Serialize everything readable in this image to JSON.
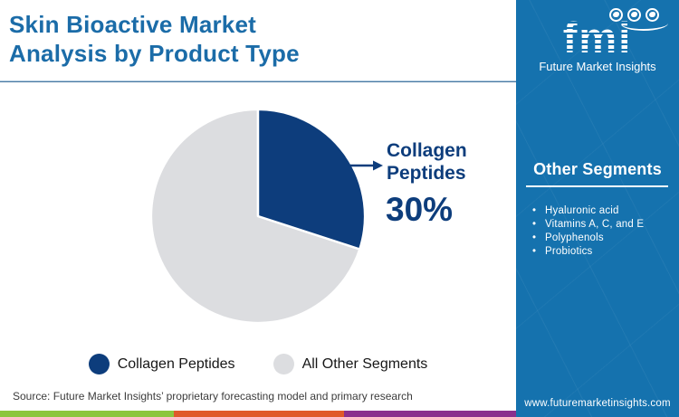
{
  "header": {
    "title": "Skin Bioactive Market Analysis by Product Type"
  },
  "logo": {
    "acronym": "fmi",
    "name": "Future Market Insights",
    "globe_icons": [
      "globe-americas-icon",
      "globe-europe-icon",
      "globe-asia-icon"
    ]
  },
  "chart_data": {
    "type": "pie",
    "title": "Skin Bioactive Market Analysis by Product Type",
    "slices": [
      {
        "label": "Collagen Peptides",
        "value": 30,
        "color": "#0d3d7c"
      },
      {
        "label": "All Other Segments",
        "value": 70,
        "color": "#dcdde0"
      }
    ],
    "start_angle_deg": 0,
    "direction": "clockwise",
    "slice_border_color": "#ffffff",
    "annotation": {
      "label": "Collagen Peptides",
      "value_label": "30%"
    },
    "legend_position": "bottom"
  },
  "callout": {
    "label": "Collagen Peptides",
    "value": "30%",
    "arrow_color": "#0d3d7c"
  },
  "legend": [
    {
      "label": "Collagen Peptides",
      "color": "#0d3d7c"
    },
    {
      "label": "All Other Segments",
      "color": "#dcdde0"
    }
  ],
  "sidebar": {
    "bg_color": "#1572ae",
    "heading": "Other Segments",
    "items": [
      "Hyaluronic acid",
      "Vitamins A, C, and E",
      "Polyphenols",
      "Probiotics"
    ],
    "website": "www.futuremarketinsights.com"
  },
  "footer": {
    "source": "Source: Future Market Insights’ proprietary forecasting model and primary research",
    "stripe_colors": [
      "#8cc63e",
      "#e0592a",
      "#8b2f8d"
    ]
  },
  "colors": {
    "title_blue": "#1b6ca8",
    "navy": "#0d3d7c",
    "light_gray": "#dcdde0",
    "divider": "#4d7ba3"
  }
}
